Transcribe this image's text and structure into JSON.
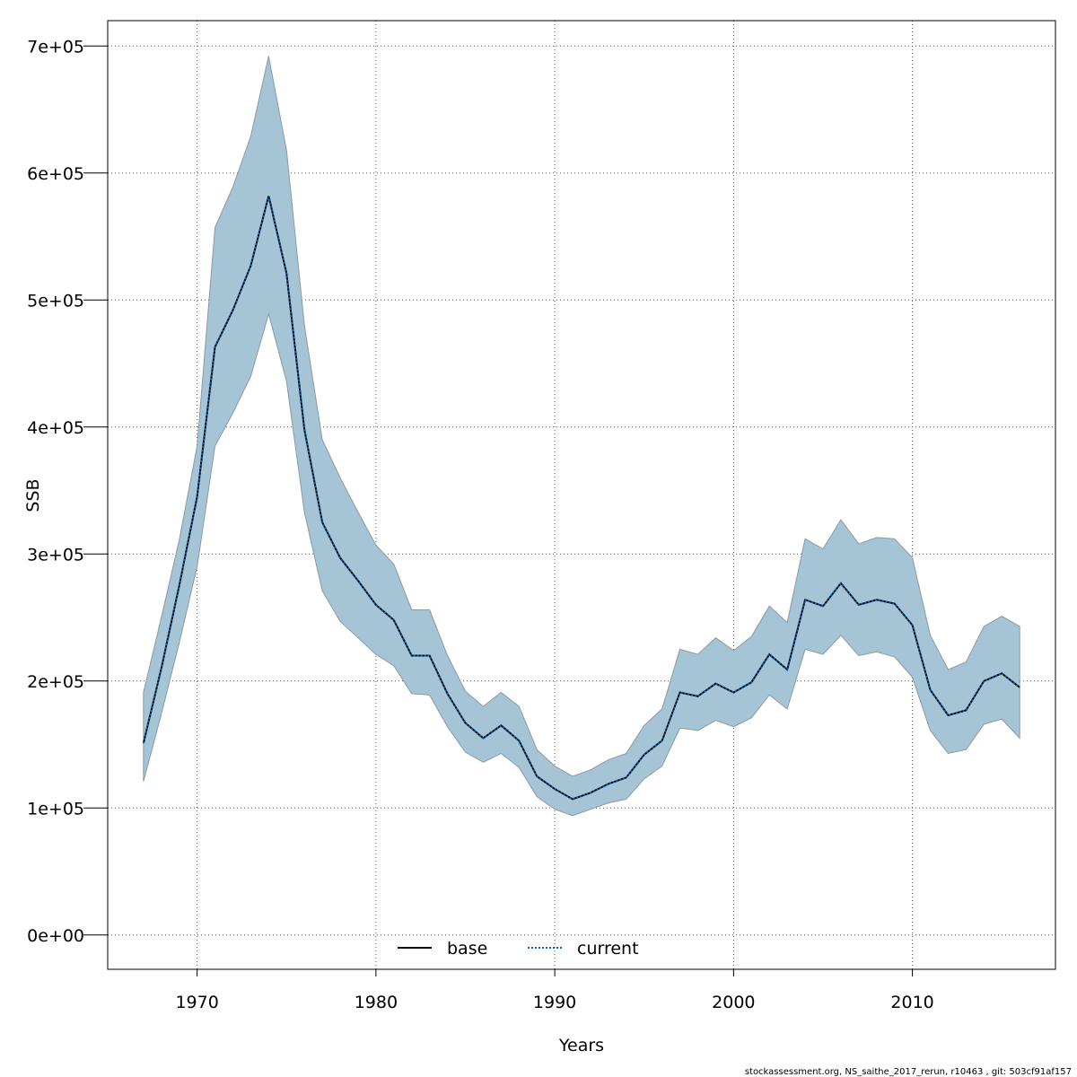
{
  "chart_data": {
    "type": "area",
    "xlabel": "Years",
    "ylabel": "SSB",
    "xlim": [
      1965,
      2018
    ],
    "ylim": [
      -27000,
      720000
    ],
    "x_ticks": [
      1970,
      1980,
      1990,
      2000,
      2010
    ],
    "x_tick_labels": [
      "1970",
      "1980",
      "1990",
      "2000",
      "2010"
    ],
    "y_ticks": [
      0,
      100000,
      200000,
      300000,
      400000,
      500000,
      600000,
      700000
    ],
    "y_tick_labels": [
      "0e+00",
      "1e+05",
      "2e+05",
      "3e+05",
      "4e+05",
      "5e+05",
      "6e+05",
      "7e+05"
    ],
    "grid": true,
    "legend_position": "bottom",
    "x": [
      1967,
      1968,
      1969,
      1970,
      1971,
      1972,
      1973,
      1974,
      1975,
      1976,
      1977,
      1978,
      1979,
      1980,
      1981,
      1982,
      1983,
      1984,
      1985,
      1986,
      1987,
      1988,
      1989,
      1990,
      1991,
      1992,
      1993,
      1994,
      1995,
      1996,
      1997,
      1998,
      1999,
      2000,
      2001,
      2002,
      2003,
      2004,
      2005,
      2006,
      2007,
      2008,
      2009,
      2010,
      2011,
      2012,
      2013,
      2014,
      2015,
      2016
    ],
    "series": [
      {
        "name": "base",
        "line_style": "solid",
        "color": "#000000",
        "values": [
          151000,
          210000,
          275000,
          345000,
          463000,
          492000,
          527000,
          582000,
          521000,
          398000,
          325000,
          297000,
          279000,
          260000,
          248000,
          220000,
          220000,
          190000,
          167000,
          155000,
          165000,
          153000,
          125000,
          115000,
          107000,
          112000,
          119000,
          124000,
          142000,
          153000,
          191000,
          188000,
          198000,
          191000,
          199000,
          221000,
          209000,
          264000,
          259000,
          277000,
          260000,
          264000,
          261000,
          244000,
          193000,
          173000,
          177000,
          200000,
          206000,
          195000
        ]
      },
      {
        "name": "current",
        "line_style": "dotted",
        "color": "#0b5fa5",
        "values": [
          151000,
          210000,
          275000,
          345000,
          463000,
          492000,
          527000,
          582000,
          521000,
          398000,
          325000,
          297000,
          279000,
          260000,
          248000,
          220000,
          220000,
          190000,
          167000,
          155000,
          165000,
          153000,
          125000,
          115000,
          107000,
          112000,
          119000,
          124000,
          142000,
          153000,
          191000,
          188000,
          198000,
          191000,
          199000,
          221000,
          209000,
          264000,
          259000,
          277000,
          260000,
          264000,
          261000,
          244000,
          193000,
          173000,
          177000,
          200000,
          206000,
          195000
        ]
      }
    ],
    "confidence_band": {
      "color": "#a5c4d5",
      "upper": [
        191000,
        250000,
        311000,
        385000,
        557000,
        589000,
        629000,
        692000,
        618000,
        480000,
        390000,
        360000,
        333000,
        307000,
        292000,
        256000,
        256000,
        220000,
        192000,
        180000,
        191000,
        180000,
        146000,
        133000,
        125000,
        130000,
        138000,
        143000,
        165000,
        178000,
        225000,
        221000,
        234000,
        224000,
        235000,
        259000,
        246000,
        312000,
        304000,
        327000,
        308000,
        313000,
        312000,
        297000,
        236000,
        209000,
        215000,
        243000,
        251000,
        243000
      ],
      "lower": [
        121000,
        174000,
        230000,
        290000,
        385000,
        411000,
        440000,
        489000,
        436000,
        333000,
        271000,
        247000,
        234000,
        221000,
        212000,
        190000,
        189000,
        164000,
        144000,
        136000,
        143000,
        132000,
        109000,
        99000,
        94000,
        99000,
        104000,
        107000,
        123000,
        133000,
        163000,
        161000,
        169000,
        164000,
        171000,
        189000,
        178000,
        225000,
        221000,
        236000,
        220000,
        223000,
        219000,
        203000,
        161000,
        143000,
        146000,
        166000,
        170000,
        155000
      ]
    }
  },
  "footer": "stockassessment.org, NS_saithe_2017_rerun, r10463 , git: 503cf91af157"
}
